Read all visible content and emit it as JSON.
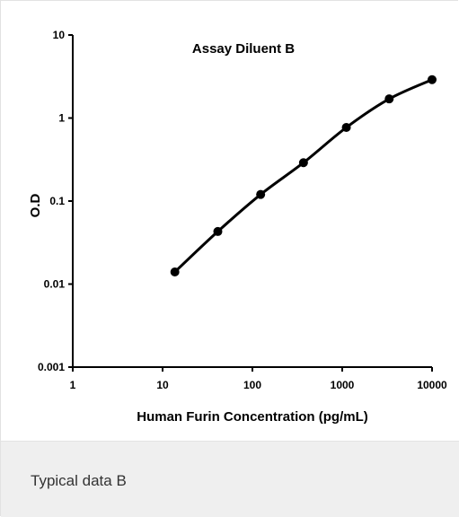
{
  "chart_data": {
    "type": "line",
    "title": "Assay Diluent B",
    "xlabel": "Human Furin Concentration (pg/mL)",
    "ylabel": "O.D",
    "xscale": "log",
    "yscale": "log",
    "xlim": [
      1,
      10000
    ],
    "ylim": [
      0.001,
      10
    ],
    "xticks": [
      "1",
      "10",
      "100",
      "1000",
      "10000"
    ],
    "yticks": [
      "0.001",
      "0.01",
      "0.1",
      "1",
      "10"
    ],
    "grid": false,
    "legend": "none",
    "line_color": "#000000",
    "series": [
      {
        "x": [
          13.7,
          41.2,
          123.5,
          370.4,
          1111,
          3333,
          10000
        ],
        "y": [
          0.014,
          0.043,
          0.12,
          0.29,
          0.77,
          1.7,
          2.9
        ]
      }
    ]
  },
  "caption": {
    "text": "Typical data B"
  }
}
